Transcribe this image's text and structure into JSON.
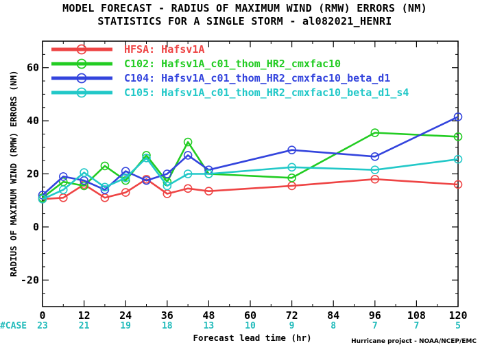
{
  "title_line1": "MODEL FORECAST - RADIUS OF MAXIMUM WIND (RMW) ERRORS (NM)",
  "title_line2": "STATISTICS FOR A SINGLE STORM - al082021_HENRI",
  "credit": "Hurricane project - NOAA/NCEP/EMC",
  "case_label": "#CASE",
  "case_color": "#22bbbb",
  "cases": [
    {
      "x": 0,
      "count": "23"
    },
    {
      "x": 12,
      "count": "21"
    },
    {
      "x": 24,
      "count": "19"
    },
    {
      "x": 36,
      "count": "18"
    },
    {
      "x": 48,
      "count": "13"
    },
    {
      "x": 60,
      "count": "10"
    },
    {
      "x": 72,
      "count": "9"
    },
    {
      "x": 84,
      "count": "8"
    },
    {
      "x": 96,
      "count": "7"
    },
    {
      "x": 108,
      "count": "7"
    },
    {
      "x": 120,
      "count": "5"
    }
  ],
  "chart_data": {
    "type": "line",
    "title": "MODEL FORECAST - RADIUS OF MAXIMUM WIND (RMW) ERRORS (NM)",
    "subtitle": "STATISTICS FOR A SINGLE STORM - al082021_HENRI",
    "xlabel": "Forecast lead time (hr)",
    "ylabel": "RADIUS OF MAXIMUM WIND (RMW) ERRORS (NM)",
    "xlim": [
      0,
      120
    ],
    "ylim": [
      -30,
      70
    ],
    "xticks": [
      0,
      12,
      24,
      36,
      48,
      60,
      72,
      84,
      96,
      108,
      120
    ],
    "yticks": [
      -20,
      0,
      20,
      40,
      60
    ],
    "grid": false,
    "legend_position": "top-left",
    "series": [
      {
        "name": "HFSA: Hafsv1A",
        "color": "#ee4444",
        "x": [
          0,
          6,
          12,
          18,
          24,
          30,
          36,
          42,
          48,
          72,
          96,
          120
        ],
        "y": [
          10.5,
          11,
          16,
          11,
          13,
          18,
          12.5,
          14.5,
          13.5,
          15.5,
          18,
          16
        ]
      },
      {
        "name": "C102: Hafsv1A_c01_thom_HR2_cmxfac10",
        "color": "#22cc22",
        "x": [
          0,
          6,
          12,
          18,
          24,
          30,
          36,
          42,
          48,
          72,
          96,
          120
        ],
        "y": [
          11,
          17,
          15.5,
          23,
          17.5,
          27,
          17,
          32,
          20,
          18.5,
          35.5,
          34
        ]
      },
      {
        "name": "C104: Hafsv1A_c01_thom_HR2_cmxfac10_beta_d1",
        "color": "#3344dd",
        "x": [
          0,
          6,
          12,
          18,
          24,
          30,
          36,
          42,
          48,
          72,
          96,
          120
        ],
        "y": [
          12,
          19,
          17.5,
          14,
          21,
          17.5,
          20,
          27,
          21.5,
          29,
          26.5,
          41.5
        ]
      },
      {
        "name": "C105: Hafsv1A_c01_thom_HR2_cmxfac10_beta_d1_s4",
        "color": "#22c8c8",
        "x": [
          0,
          6,
          12,
          18,
          24,
          30,
          36,
          42,
          48,
          72,
          96,
          120
        ],
        "y": [
          10.5,
          14,
          20.5,
          15,
          18.5,
          26,
          15.5,
          20,
          20,
          22.5,
          21.5,
          25.5
        ]
      }
    ]
  }
}
